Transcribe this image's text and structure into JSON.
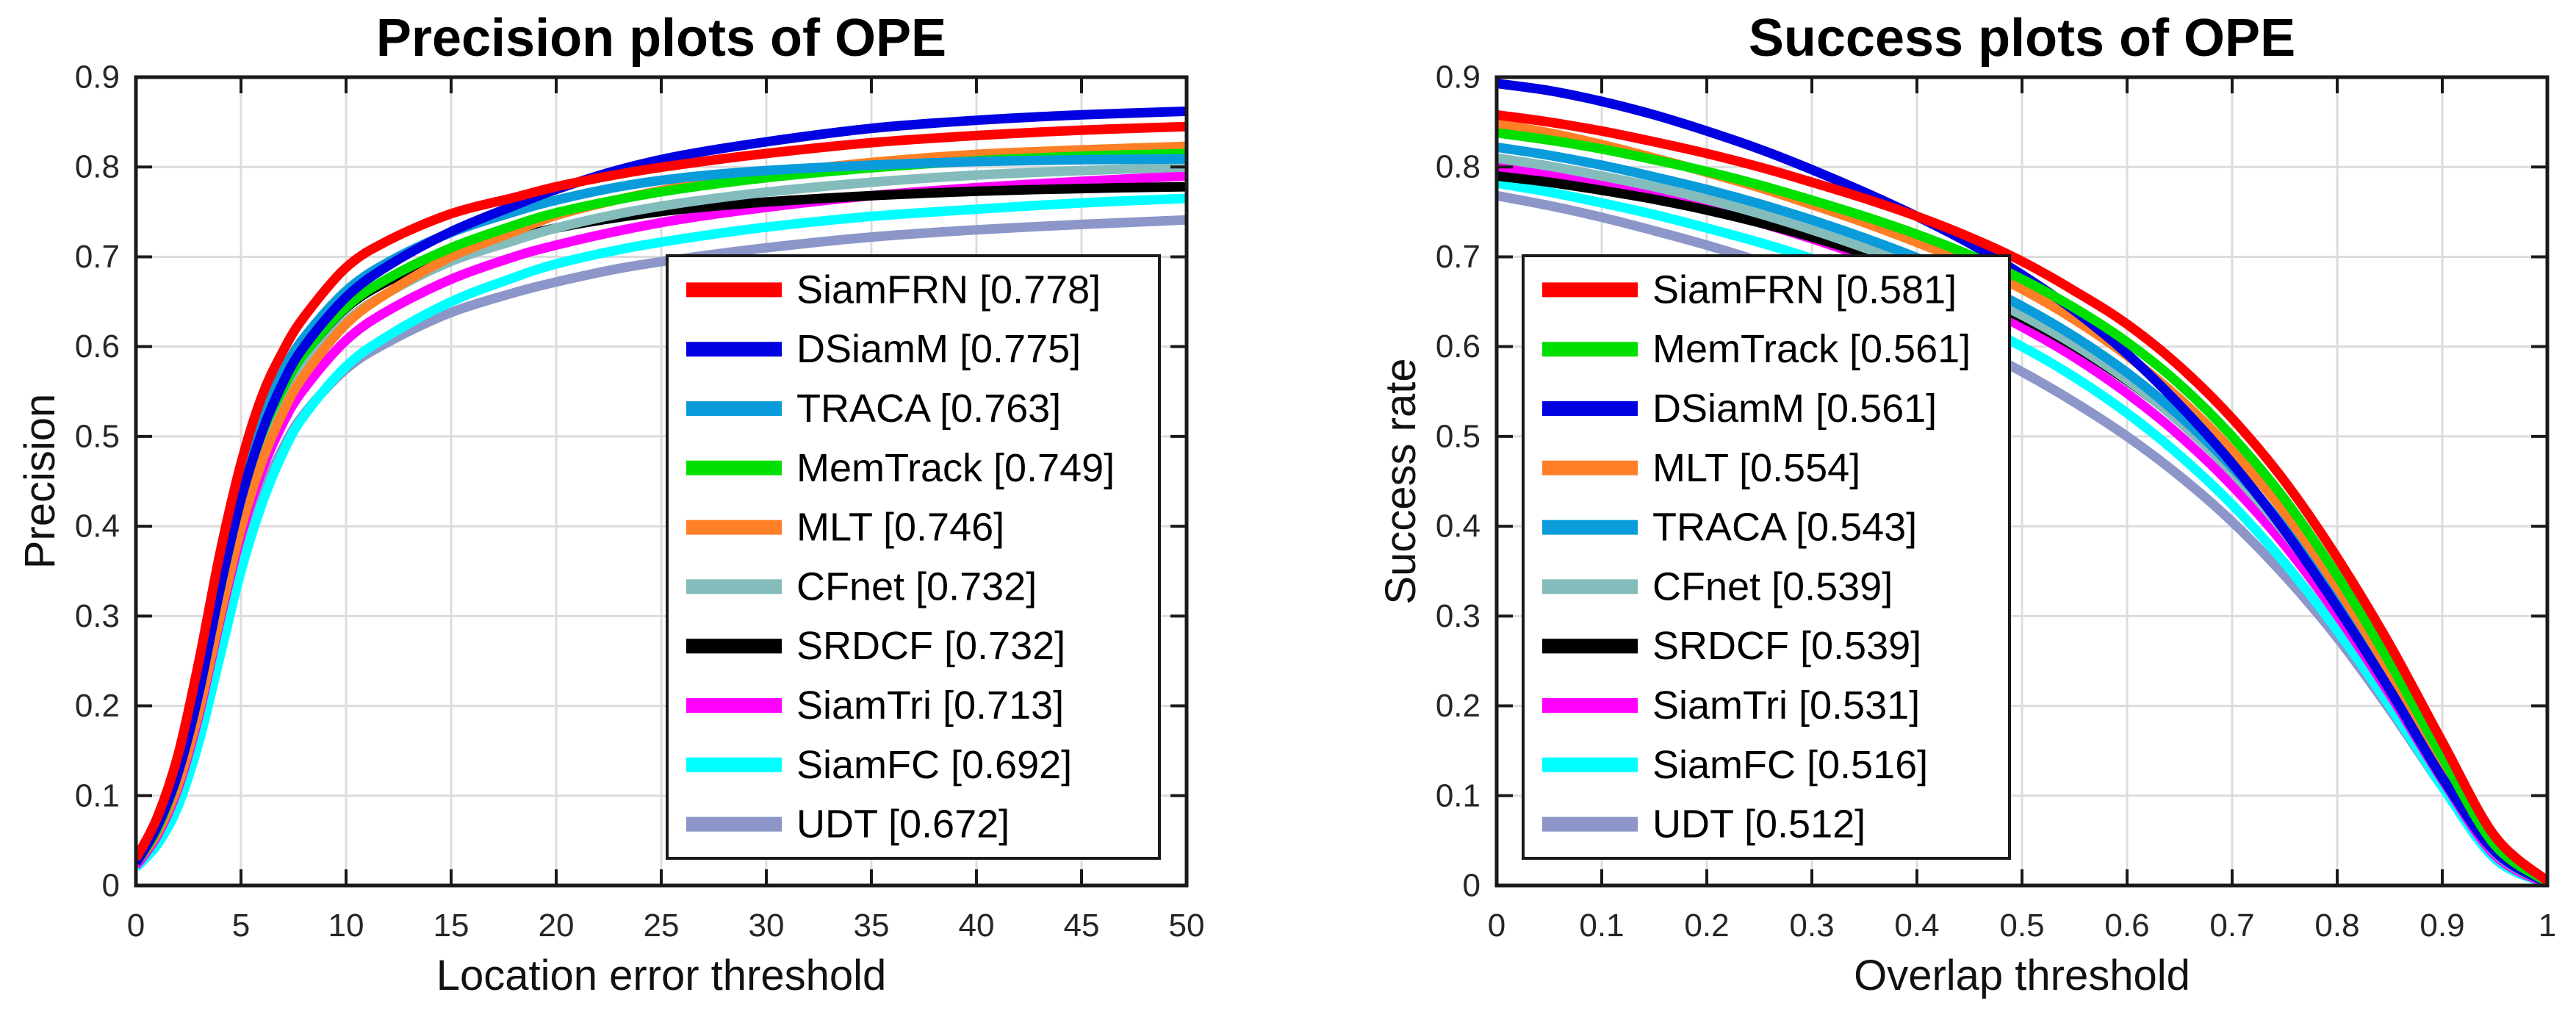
{
  "chart_data": [
    {
      "id": "precision-ope",
      "type": "line",
      "title": "Precision plots of OPE",
      "xlabel": "Location error threshold",
      "ylabel": "Precision",
      "xlim": [
        0,
        50
      ],
      "ylim": [
        0,
        0.9
      ],
      "xticks": [
        0,
        5,
        10,
        15,
        20,
        25,
        30,
        35,
        40,
        45,
        50
      ],
      "yticks": [
        0,
        0.1,
        0.2,
        0.3,
        0.4,
        0.5,
        0.6,
        0.7,
        0.8,
        0.9
      ],
      "grid": true,
      "legend_position": "lower-right-inside",
      "x": [
        0,
        1,
        2,
        3,
        4,
        5,
        6,
        7,
        8,
        10,
        12,
        15,
        18,
        20,
        23,
        26,
        30,
        35,
        40,
        45,
        50
      ],
      "series": [
        {
          "name": "SiamFRN",
          "score": 0.778,
          "label": "SiamFRN [0.778]",
          "color": "#ff0000",
          "y": [
            0.03,
            0.075,
            0.145,
            0.25,
            0.37,
            0.47,
            0.545,
            0.595,
            0.633,
            0.688,
            0.718,
            0.748,
            0.766,
            0.778,
            0.792,
            0.803,
            0.815,
            0.827,
            0.835,
            0.841,
            0.845
          ]
        },
        {
          "name": "DSiamM",
          "score": 0.775,
          "label": "DSiamM [0.775]",
          "color": "#0000e0",
          "y": [
            0.025,
            0.065,
            0.125,
            0.215,
            0.33,
            0.43,
            0.505,
            0.56,
            0.6,
            0.655,
            0.69,
            0.728,
            0.757,
            0.775,
            0.797,
            0.813,
            0.828,
            0.843,
            0.852,
            0.858,
            0.862
          ]
        },
        {
          "name": "TRACA",
          "score": 0.763,
          "label": "TRACA [0.763]",
          "color": "#0a9bdb",
          "y": [
            0.03,
            0.07,
            0.135,
            0.23,
            0.345,
            0.445,
            0.52,
            0.572,
            0.61,
            0.662,
            0.694,
            0.727,
            0.75,
            0.763,
            0.778,
            0.788,
            0.796,
            0.802,
            0.806,
            0.808,
            0.809
          ]
        },
        {
          "name": "MemTrack",
          "score": 0.749,
          "label": "MemTrack [0.749]",
          "color": "#00e000",
          "y": [
            0.025,
            0.062,
            0.125,
            0.218,
            0.33,
            0.43,
            0.503,
            0.553,
            0.592,
            0.644,
            0.676,
            0.71,
            0.735,
            0.749,
            0.764,
            0.776,
            0.788,
            0.799,
            0.807,
            0.812,
            0.815
          ]
        },
        {
          "name": "MLT",
          "score": 0.746,
          "label": "MLT [0.746]",
          "color": "#ff7f26",
          "y": [
            0.025,
            0.058,
            0.112,
            0.195,
            0.3,
            0.398,
            0.472,
            0.527,
            0.568,
            0.625,
            0.66,
            0.7,
            0.728,
            0.746,
            0.764,
            0.778,
            0.792,
            0.805,
            0.814,
            0.819,
            0.823
          ]
        },
        {
          "name": "CFnet",
          "score": 0.732,
          "label": "CFnet [0.732]",
          "color": "#84bcbc",
          "y": [
            0.025,
            0.062,
            0.12,
            0.208,
            0.315,
            0.412,
            0.485,
            0.537,
            0.575,
            0.628,
            0.66,
            0.695,
            0.718,
            0.732,
            0.748,
            0.76,
            0.772,
            0.783,
            0.791,
            0.796,
            0.8
          ]
        },
        {
          "name": "SRDCF",
          "score": 0.732,
          "label": "SRDCF [0.732]",
          "color": "#000000",
          "y": [
            0.025,
            0.066,
            0.128,
            0.222,
            0.335,
            0.432,
            0.505,
            0.555,
            0.592,
            0.643,
            0.673,
            0.704,
            0.721,
            0.732,
            0.744,
            0.753,
            0.761,
            0.768,
            0.773,
            0.776,
            0.778
          ]
        },
        {
          "name": "SiamTri",
          "score": 0.713,
          "label": "SiamTri [0.713]",
          "color": "#ff00ff",
          "y": [
            0.022,
            0.055,
            0.108,
            0.19,
            0.295,
            0.39,
            0.462,
            0.515,
            0.553,
            0.607,
            0.64,
            0.675,
            0.7,
            0.713,
            0.729,
            0.742,
            0.755,
            0.768,
            0.777,
            0.784,
            0.79
          ]
        },
        {
          "name": "SiamFC",
          "score": 0.692,
          "label": "SiamFC [0.692]",
          "color": "#00ffff",
          "y": [
            0.02,
            0.045,
            0.088,
            0.16,
            0.255,
            0.35,
            0.425,
            0.482,
            0.523,
            0.578,
            0.612,
            0.65,
            0.677,
            0.692,
            0.708,
            0.72,
            0.733,
            0.745,
            0.753,
            0.76,
            0.765
          ]
        },
        {
          "name": "UDT",
          "score": 0.672,
          "label": "UDT [0.672]",
          "color": "#8c96c8",
          "y": [
            0.02,
            0.05,
            0.098,
            0.175,
            0.272,
            0.365,
            0.435,
            0.487,
            0.525,
            0.575,
            0.605,
            0.638,
            0.66,
            0.672,
            0.687,
            0.698,
            0.71,
            0.722,
            0.73,
            0.736,
            0.741
          ]
        }
      ]
    },
    {
      "id": "success-ope",
      "type": "line",
      "title": "Success plots of OPE",
      "xlabel": "Overlap threshold",
      "ylabel": "Success rate",
      "xlim": [
        0,
        1
      ],
      "ylim": [
        0,
        0.9
      ],
      "xticks": [
        0,
        0.1,
        0.2,
        0.3,
        0.4,
        0.5,
        0.6,
        0.7,
        0.8,
        0.9,
        1
      ],
      "yticks": [
        0,
        0.1,
        0.2,
        0.3,
        0.4,
        0.5,
        0.6,
        0.7,
        0.8,
        0.9
      ],
      "grid": true,
      "legend_position": "lower-left-inside",
      "x": [
        0,
        0.05,
        0.1,
        0.15,
        0.2,
        0.25,
        0.3,
        0.35,
        0.4,
        0.45,
        0.5,
        0.55,
        0.6,
        0.65,
        0.7,
        0.75,
        0.8,
        0.85,
        0.9,
        0.95,
        1
      ],
      "series": [
        {
          "name": "SiamFRN",
          "score": 0.581,
          "label": "SiamFRN [0.581]",
          "color": "#ff0000",
          "y": [
            0.858,
            0.85,
            0.84,
            0.828,
            0.815,
            0.8,
            0.783,
            0.765,
            0.745,
            0.722,
            0.695,
            0.662,
            0.625,
            0.578,
            0.52,
            0.45,
            0.365,
            0.268,
            0.16,
            0.055,
            0.005
          ]
        },
        {
          "name": "MemTrack",
          "score": 0.561,
          "label": "MemTrack [0.561]",
          "color": "#00e000",
          "y": [
            0.838,
            0.83,
            0.82,
            0.808,
            0.795,
            0.78,
            0.763,
            0.745,
            0.725,
            0.702,
            0.675,
            0.643,
            0.605,
            0.558,
            0.5,
            0.43,
            0.345,
            0.248,
            0.143,
            0.045,
            0.004
          ]
        },
        {
          "name": "DSiamM",
          "score": 0.561,
          "label": "DSiamM [0.561]",
          "color": "#0000e0",
          "y": [
            0.893,
            0.885,
            0.873,
            0.858,
            0.84,
            0.82,
            0.797,
            0.772,
            0.745,
            0.715,
            0.68,
            0.64,
            0.592,
            0.535,
            0.47,
            0.395,
            0.31,
            0.218,
            0.12,
            0.038,
            0.003
          ]
        },
        {
          "name": "MLT",
          "score": 0.554,
          "label": "MLT [0.554]",
          "color": "#ff7f26",
          "y": [
            0.848,
            0.838,
            0.825,
            0.81,
            0.794,
            0.777,
            0.758,
            0.738,
            0.716,
            0.692,
            0.664,
            0.63,
            0.59,
            0.542,
            0.484,
            0.415,
            0.332,
            0.238,
            0.135,
            0.042,
            0.003
          ]
        },
        {
          "name": "TRACA",
          "score": 0.543,
          "label": "TRACA [0.543]",
          "color": "#0a9bdb",
          "y": [
            0.822,
            0.813,
            0.802,
            0.789,
            0.775,
            0.759,
            0.741,
            0.721,
            0.699,
            0.674,
            0.645,
            0.611,
            0.571,
            0.523,
            0.466,
            0.398,
            0.318,
            0.227,
            0.128,
            0.038,
            0.003
          ]
        },
        {
          "name": "CFnet",
          "score": 0.539,
          "label": "CFnet [0.539]",
          "color": "#84bcbc",
          "y": [
            0.81,
            0.801,
            0.79,
            0.778,
            0.764,
            0.748,
            0.73,
            0.71,
            0.688,
            0.663,
            0.635,
            0.602,
            0.563,
            0.516,
            0.46,
            0.393,
            0.314,
            0.224,
            0.126,
            0.037,
            0.003
          ]
        },
        {
          "name": "SRDCF",
          "score": 0.539,
          "label": "SRDCF [0.539]",
          "color": "#000000",
          "y": [
            0.79,
            0.783,
            0.774,
            0.764,
            0.752,
            0.738,
            0.722,
            0.704,
            0.683,
            0.659,
            0.632,
            0.6,
            0.562,
            0.517,
            0.462,
            0.396,
            0.318,
            0.228,
            0.13,
            0.04,
            0.003
          ]
        },
        {
          "name": "SiamTri",
          "score": 0.531,
          "label": "SiamTri [0.531]",
          "color": "#ff00ff",
          "y": [
            0.8,
            0.791,
            0.78,
            0.768,
            0.754,
            0.738,
            0.72,
            0.7,
            0.677,
            0.651,
            0.622,
            0.588,
            0.548,
            0.501,
            0.445,
            0.379,
            0.301,
            0.213,
            0.118,
            0.034,
            0.002
          ]
        },
        {
          "name": "SiamFC",
          "score": 0.516,
          "label": "SiamFC [0.516]",
          "color": "#00ffff",
          "y": [
            0.782,
            0.772,
            0.76,
            0.747,
            0.732,
            0.716,
            0.698,
            0.678,
            0.655,
            0.629,
            0.6,
            0.566,
            0.526,
            0.479,
            0.424,
            0.359,
            0.284,
            0.2,
            0.11,
            0.03,
            0.002
          ]
        },
        {
          "name": "UDT",
          "score": 0.512,
          "label": "UDT [0.512]",
          "color": "#8c96c8",
          "y": [
            0.768,
            0.757,
            0.744,
            0.729,
            0.713,
            0.695,
            0.675,
            0.653,
            0.629,
            0.602,
            0.572,
            0.538,
            0.5,
            0.456,
            0.405,
            0.345,
            0.276,
            0.196,
            0.11,
            0.032,
            0.002
          ]
        }
      ]
    }
  ],
  "style_colors": {
    "grid": "#dcdcdc",
    "axis": "#1a1a1a",
    "tick_label": "#262626",
    "legend_border": "#1a1a1a",
    "background": "#ffffff"
  }
}
